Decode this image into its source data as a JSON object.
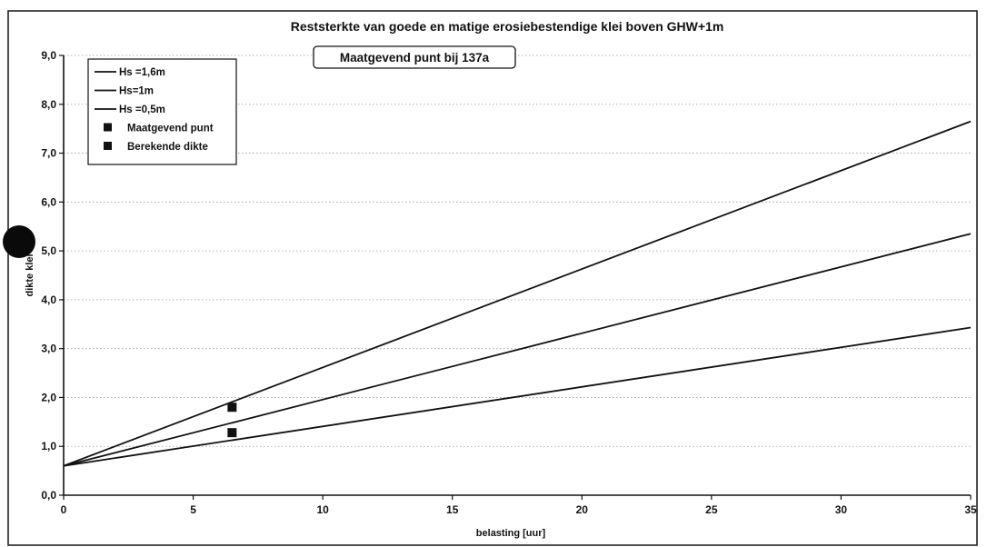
{
  "chart_data": {
    "type": "line",
    "title": "Reststerkte van goede en matige erosiebestendige klei boven GHW+1m",
    "annotation": "Maatgevend punt bij 137a",
    "xlabel": "belasting [uur]",
    "ylabel": "dikte klei",
    "xlim": [
      0,
      35
    ],
    "ylim": [
      0,
      9
    ],
    "xticks": [
      0,
      5,
      10,
      15,
      20,
      25,
      30,
      35
    ],
    "xtick_labels": [
      "0",
      "5",
      "10",
      "15",
      "20",
      "25",
      "30",
      "35"
    ],
    "yticks": [
      0,
      1,
      2,
      3,
      4,
      5,
      6,
      7,
      8,
      9
    ],
    "ytick_labels": [
      "0,0",
      "1,0",
      "2,0",
      "3,0",
      "4,0",
      "5,0",
      "6,0",
      "7,0",
      "8,0",
      "9,0"
    ],
    "grid": "horizontal dotted",
    "legend_position": "top-left",
    "series": [
      {
        "name": "Hs =1,6m",
        "kind": "line",
        "x": [
          0,
          35
        ],
        "y": [
          0.6,
          7.65
        ]
      },
      {
        "name": "Hs=1m",
        "kind": "line",
        "x": [
          0,
          35
        ],
        "y": [
          0.6,
          5.35
        ]
      },
      {
        "name": "Hs =0,5m",
        "kind": "line",
        "x": [
          0,
          35
        ],
        "y": [
          0.6,
          3.43
        ]
      },
      {
        "name": "Maatgevend punt",
        "kind": "marker",
        "x": [
          6.5
        ],
        "y": [
          1.8
        ]
      },
      {
        "name": "Berekende dikte",
        "kind": "marker",
        "x": [
          6.5
        ],
        "y": [
          1.28
        ]
      }
    ]
  }
}
